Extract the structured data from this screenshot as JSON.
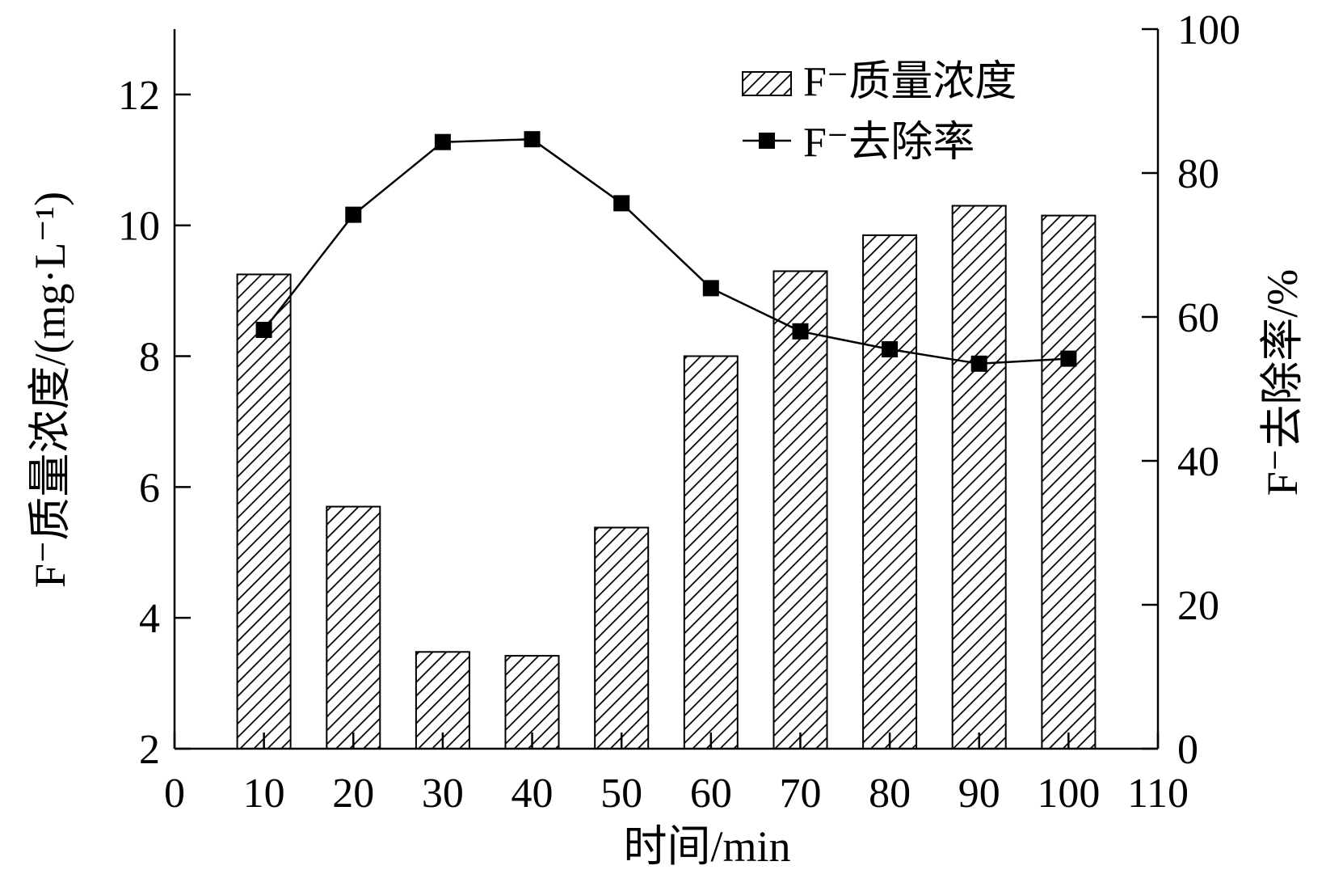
{
  "chart_data": {
    "type": "bar",
    "x": [
      10,
      20,
      30,
      40,
      50,
      60,
      70,
      80,
      90,
      100
    ],
    "xlim": [
      0,
      110
    ],
    "xticks": [
      0,
      10,
      20,
      30,
      40,
      50,
      60,
      70,
      80,
      90,
      100,
      110
    ],
    "xlabel": "时间/min",
    "ylabel_left": "F⁻质量浓度/(mg·L⁻¹)",
    "ylabel_right": "F⁻去除率/%",
    "ylim_left": [
      2,
      13
    ],
    "yticks_left": [
      2,
      4,
      6,
      8,
      10,
      12
    ],
    "ylim_right": [
      0,
      100
    ],
    "yticks_right": [
      0,
      20,
      40,
      60,
      80,
      100
    ],
    "series": [
      {
        "name": "F⁻质量浓度",
        "type": "bar",
        "axis": "left",
        "pattern": "diagonal-hatch",
        "values": [
          9.25,
          5.7,
          3.48,
          3.42,
          5.38,
          8.0,
          9.3,
          9.85,
          10.3,
          10.15
        ]
      },
      {
        "name": "F⁻去除率",
        "type": "line",
        "axis": "right",
        "marker": "square",
        "values": [
          58.2,
          74.2,
          84.3,
          84.7,
          75.8,
          64.0,
          58.0,
          55.5,
          53.5,
          54.2
        ]
      }
    ],
    "legend_position": "top-right",
    "grid": false
  }
}
